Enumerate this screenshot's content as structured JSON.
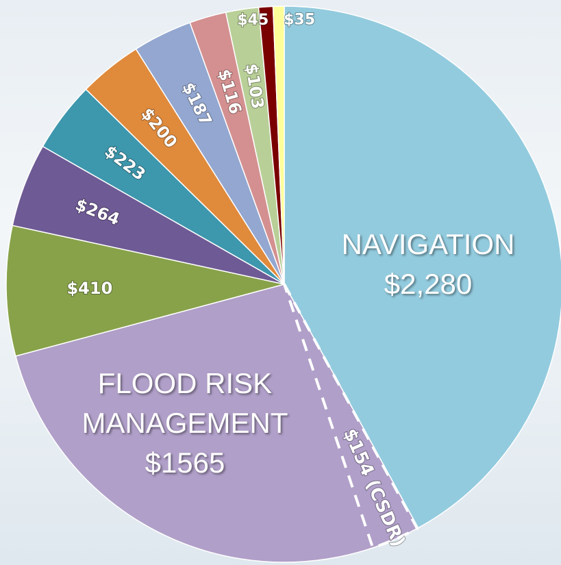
{
  "chart_data": {
    "type": "pie",
    "categories": [
      "NAVIGATION",
      "FLOOD RISK MANAGEMENT",
      null,
      null,
      null,
      null,
      null,
      null,
      null,
      null,
      null
    ],
    "values": [
      2280,
      1565,
      410,
      264,
      223,
      200,
      187,
      116,
      103,
      45,
      35
    ],
    "value_labels": [
      "$2,280",
      "$1565",
      "$410",
      "$264",
      "$223",
      "$200",
      "$187",
      "$116",
      "$103",
      "$45",
      "$35"
    ],
    "colors": [
      "#93cbde",
      "#b09fc8",
      "#88a24a",
      "#6e5a94",
      "#3d97ad",
      "#e08a3c",
      "#93a7d0",
      "#d49090",
      "#b9cf98",
      "#7a0000",
      "#ffff99"
    ],
    "sub_slice": {
      "value": 154,
      "label": "$154 (CSDR)"
    }
  }
}
